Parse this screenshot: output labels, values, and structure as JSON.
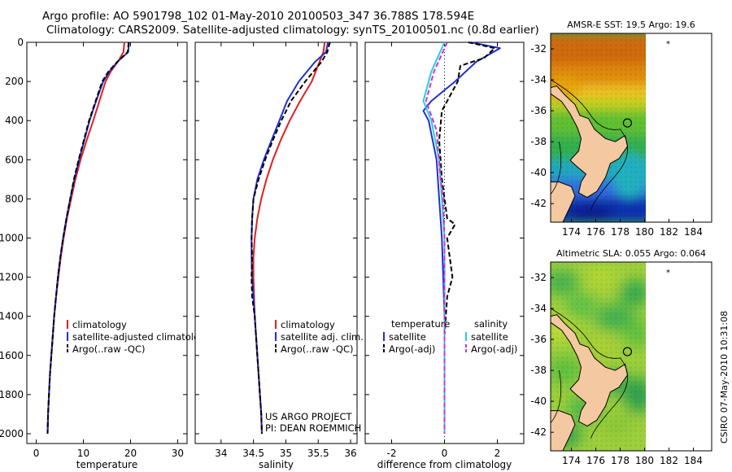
{
  "header": {
    "line1": "Argo profile: AO 5901798_102 01-May-2010 20100503_347 36.788S 178.594E",
    "line2": "Climatology: CARS2009. Satellite-adjusted climatology: synTS_20100501.nc (0.8d earlier)"
  },
  "side_credit": "CSIRO 07-May-2010 10:31:08",
  "project_credit": {
    "line1": "US ARGO PROJECT",
    "line2": "PI: DEAN ROEMMICH"
  },
  "colors": {
    "climatology": "#e02020",
    "satellite": "#2030d0",
    "argo": "#000000",
    "cyan": "#20d0e0",
    "magenta": "#d030d0",
    "land": "#f4c8a0",
    "water": "#ffffff"
  },
  "chart_data": [
    {
      "type": "line",
      "id": "temperature",
      "xlabel": "temperature",
      "ylabel": "",
      "xlim": [
        -2,
        32
      ],
      "ylim": [
        2050,
        0
      ],
      "xticks": [
        0,
        10,
        20,
        30
      ],
      "yticks": [
        0,
        200,
        400,
        600,
        800,
        1000,
        1200,
        1400,
        1600,
        1800,
        2000
      ],
      "legend": [
        "climatology",
        "satellite-adjusted climatology",
        "Argo(..raw -QC)"
      ],
      "series": [
        {
          "name": "climatology",
          "color": "#e02020",
          "dash": "",
          "points": [
            [
              18.7,
              0
            ],
            [
              18.5,
              50
            ],
            [
              17.3,
              100
            ],
            [
              15.8,
              150
            ],
            [
              14.7,
              200
            ],
            [
              13.4,
              300
            ],
            [
              12.1,
              400
            ],
            [
              10.7,
              500
            ],
            [
              9.4,
              600
            ],
            [
              8.3,
              700
            ],
            [
              7.4,
              800
            ],
            [
              6.5,
              900
            ],
            [
              5.8,
              1000
            ],
            [
              5.2,
              1100
            ],
            [
              4.7,
              1200
            ],
            [
              4.2,
              1300
            ],
            [
              3.8,
              1400
            ],
            [
              3.5,
              1500
            ],
            [
              3.2,
              1600
            ],
            [
              2.9,
              1700
            ],
            [
              2.7,
              1800
            ],
            [
              2.5,
              1900
            ],
            [
              2.4,
              2000
            ]
          ]
        },
        {
          "name": "satellite-adjusted climatology",
          "color": "#2030d0",
          "dash": "",
          "points": [
            [
              19.7,
              0
            ],
            [
              19.5,
              50
            ],
            [
              17.2,
              100
            ],
            [
              15.5,
              150
            ],
            [
              14.2,
              200
            ],
            [
              12.7,
              300
            ],
            [
              11.3,
              400
            ],
            [
              10.2,
              500
            ],
            [
              9.1,
              600
            ],
            [
              8.1,
              700
            ],
            [
              7.2,
              800
            ],
            [
              6.4,
              900
            ],
            [
              5.7,
              1000
            ],
            [
              5.1,
              1100
            ],
            [
              4.6,
              1200
            ],
            [
              4.2,
              1300
            ],
            [
              3.8,
              1400
            ],
            [
              3.5,
              1500
            ],
            [
              3.2,
              1600
            ],
            [
              2.9,
              1700
            ],
            [
              2.7,
              1800
            ],
            [
              2.5,
              1900
            ],
            [
              2.4,
              2000
            ]
          ]
        },
        {
          "name": "Argo(..raw -QC)",
          "color": "#000000",
          "dash": "6,3",
          "points": [
            [
              19.6,
              0
            ],
            [
              19.4,
              50
            ],
            [
              17.2,
              100
            ],
            [
              15.3,
              150
            ],
            [
              14.0,
              200
            ],
            [
              12.6,
              300
            ],
            [
              11.2,
              400
            ],
            [
              10.1,
              500
            ],
            [
              9.0,
              600
            ],
            [
              8.0,
              700
            ],
            [
              7.2,
              800
            ],
            [
              6.4,
              900
            ],
            [
              5.7,
              1000
            ],
            [
              5.1,
              1100
            ],
            [
              4.6,
              1200
            ],
            [
              4.2,
              1300
            ],
            [
              3.8,
              1400
            ],
            [
              3.5,
              1500
            ],
            [
              3.2,
              1600
            ],
            [
              2.9,
              1700
            ],
            [
              2.7,
              1800
            ],
            [
              2.5,
              1900
            ],
            [
              2.4,
              2000
            ]
          ]
        }
      ]
    },
    {
      "type": "line",
      "id": "salinity",
      "xlabel": "salinity",
      "xlim": [
        33.6,
        36.1
      ],
      "ylim": [
        2050,
        0
      ],
      "xticks": [
        34,
        34.5,
        35,
        35.5,
        36
      ],
      "legend": [
        "climatology",
        "satellite adj. clim.",
        "Argo(..raw -QC)"
      ],
      "series": [
        {
          "name": "climatology",
          "color": "#e02020",
          "dash": "",
          "points": [
            [
              35.6,
              0
            ],
            [
              35.58,
              50
            ],
            [
              35.52,
              100
            ],
            [
              35.4,
              200
            ],
            [
              35.22,
              300
            ],
            [
              35.06,
              400
            ],
            [
              34.92,
              500
            ],
            [
              34.8,
              600
            ],
            [
              34.7,
              700
            ],
            [
              34.62,
              800
            ],
            [
              34.56,
              900
            ],
            [
              34.52,
              1000
            ],
            [
              34.5,
              1100
            ],
            [
              34.5,
              1200
            ],
            [
              34.51,
              1300
            ],
            [
              34.52,
              1400
            ],
            [
              34.54,
              1500
            ],
            [
              34.56,
              1600
            ],
            [
              34.58,
              1700
            ],
            [
              34.6,
              1800
            ],
            [
              34.62,
              1900
            ],
            [
              34.63,
              2000
            ]
          ]
        },
        {
          "name": "satellite adj. clim.",
          "color": "#2030d0",
          "dash": "",
          "points": [
            [
              35.65,
              0
            ],
            [
              35.62,
              50
            ],
            [
              35.45,
              100
            ],
            [
              35.2,
              200
            ],
            [
              35.02,
              300
            ],
            [
              34.9,
              400
            ],
            [
              34.78,
              500
            ],
            [
              34.66,
              600
            ],
            [
              34.56,
              700
            ],
            [
              34.5,
              800
            ],
            [
              34.48,
              900
            ],
            [
              34.47,
              1000
            ],
            [
              34.47,
              1100
            ],
            [
              34.48,
              1200
            ],
            [
              34.5,
              1300
            ],
            [
              34.52,
              1400
            ],
            [
              34.54,
              1500
            ],
            [
              34.56,
              1600
            ],
            [
              34.58,
              1700
            ],
            [
              34.6,
              1800
            ],
            [
              34.62,
              1900
            ],
            [
              34.63,
              2000
            ]
          ]
        },
        {
          "name": "Argo(..raw -QC)",
          "color": "#000000",
          "dash": "6,3",
          "points": [
            [
              35.68,
              0
            ],
            [
              35.64,
              50
            ],
            [
              35.55,
              100
            ],
            [
              35.3,
              200
            ],
            [
              35.08,
              300
            ],
            [
              34.93,
              400
            ],
            [
              34.8,
              500
            ],
            [
              34.68,
              600
            ],
            [
              34.58,
              700
            ],
            [
              34.5,
              800
            ],
            [
              34.48,
              900
            ],
            [
              34.47,
              1000
            ],
            [
              34.48,
              1100
            ],
            [
              34.47,
              1200
            ],
            [
              34.48,
              1300
            ],
            [
              34.52,
              1400
            ],
            [
              34.54,
              1500
            ],
            [
              34.56,
              1600
            ],
            [
              34.58,
              1700
            ],
            [
              34.6,
              1800
            ],
            [
              34.62,
              1900
            ],
            [
              34.63,
              2000
            ]
          ]
        }
      ]
    },
    {
      "type": "line",
      "id": "difference",
      "xlabel": "difference from climatology",
      "xlim": [
        -3,
        3
      ],
      "ylim": [
        2050,
        0
      ],
      "xticks": [
        -2,
        0,
        2
      ],
      "legend_left_title": "temperature",
      "legend_right_title": "salinity",
      "legend": [
        "satellite",
        "Argo(-adj)",
        "satellite",
        "Argo(-adj)"
      ],
      "series": [
        {
          "name": "temperature satellite",
          "color": "#2030d0",
          "dash": "",
          "points": [
            [
              1.0,
              0
            ],
            [
              2.1,
              30
            ],
            [
              1.2,
              100
            ],
            [
              0.4,
              200
            ],
            [
              -0.5,
              300
            ],
            [
              -0.8,
              350
            ],
            [
              -0.6,
              400
            ],
            [
              -0.3,
              600
            ],
            [
              -0.2,
              800
            ],
            [
              -0.1,
              1000
            ],
            [
              -0.05,
              1200
            ],
            [
              0,
              1400
            ],
            [
              0,
              1600
            ],
            [
              0,
              1800
            ],
            [
              0,
              2000
            ]
          ]
        },
        {
          "name": "temperature Argo(-adj)",
          "color": "#000000",
          "dash": "6,3",
          "points": [
            [
              0.9,
              0
            ],
            [
              1.9,
              30
            ],
            [
              1.5,
              80
            ],
            [
              0.6,
              120
            ],
            [
              0.5,
              200
            ],
            [
              -0.1,
              350
            ],
            [
              -0.2,
              500
            ],
            [
              -0.1,
              700
            ],
            [
              0.1,
              900
            ],
            [
              0.4,
              930
            ],
            [
              0.1,
              1000
            ],
            [
              0.2,
              1100
            ],
            [
              0.3,
              1200
            ],
            [
              0.1,
              1300
            ],
            [
              0,
              1500
            ],
            [
              0,
              1800
            ],
            [
              0,
              2000
            ]
          ]
        },
        {
          "name": "salinity satellite",
          "color": "#20d0e0",
          "dash": "",
          "points": [
            [
              0,
              0
            ],
            [
              -0.5,
              150
            ],
            [
              -0.8,
              300
            ],
            [
              -0.5,
              400
            ],
            [
              -0.2,
              600
            ],
            [
              -0.1,
              800
            ],
            [
              0,
              1000
            ],
            [
              0,
              1200
            ],
            [
              0,
              1500
            ],
            [
              0,
              1800
            ],
            [
              0,
              2000
            ]
          ]
        },
        {
          "name": "salinity Argo(-adj)",
          "color": "#d030d0",
          "dash": "6,3",
          "points": [
            [
              0.1,
              0
            ],
            [
              -0.4,
              150
            ],
            [
              -0.7,
              300
            ],
            [
              -0.3,
              450
            ],
            [
              -0.15,
              700
            ],
            [
              -0.05,
              800
            ],
            [
              0,
              1000
            ],
            [
              0,
              1200
            ],
            [
              0,
              1500
            ],
            [
              0,
              1800
            ],
            [
              0,
              2000
            ]
          ]
        }
      ]
    },
    {
      "type": "heatmap",
      "id": "sst_map",
      "title": "AMSR-E SST: 19.5  Argo: 19.6",
      "xlim": [
        172.3,
        185.5
      ],
      "ylim": [
        -43.2,
        -31
      ],
      "xticks": [
        174,
        176,
        178,
        180,
        182,
        184
      ],
      "yticks": [
        -32,
        -34,
        -36,
        -38,
        -40,
        -42
      ],
      "float_lon": 178.594,
      "float_lat": -36.788,
      "data_extent_lon": [
        172.3,
        180.1
      ]
    },
    {
      "type": "heatmap",
      "id": "sla_map",
      "title": "Altimetric SLA: 0.055  Argo: 0.064",
      "xlim": [
        172.3,
        185.5
      ],
      "ylim": [
        -43.2,
        -31
      ],
      "xticks": [
        174,
        176,
        178,
        180,
        182,
        184
      ],
      "yticks": [
        -32,
        -34,
        -36,
        -38,
        -40,
        -42
      ],
      "float_lon": 178.594,
      "float_lat": -36.788,
      "data_extent_lon": [
        172.3,
        180.1
      ]
    }
  ]
}
